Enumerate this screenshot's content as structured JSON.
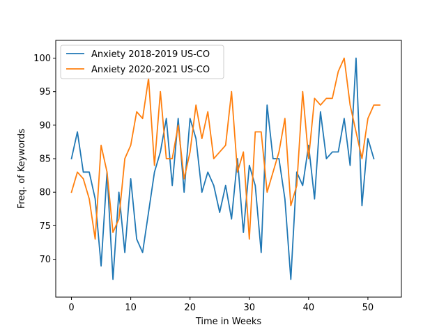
{
  "chart_data": {
    "type": "line",
    "title": "",
    "xlabel": "Time in Weeks",
    "ylabel": "Freq. of Keywords",
    "xlim": [
      -2.65,
      55.65
    ],
    "ylim": [
      64.35,
      102.65
    ],
    "xticks": [
      0,
      10,
      20,
      30,
      40,
      50
    ],
    "yticks": [
      70,
      75,
      80,
      85,
      90,
      95,
      100
    ],
    "grid": false,
    "legend_position": "top-left",
    "series": [
      {
        "name": "Anxiety 2018-2019 US-CO",
        "color": "#1f77b4",
        "x": [
          0,
          1,
          2,
          3,
          4,
          5,
          6,
          7,
          8,
          9,
          10,
          11,
          12,
          13,
          14,
          15,
          16,
          17,
          18,
          19,
          20,
          21,
          22,
          23,
          24,
          25,
          26,
          27,
          28,
          29,
          30,
          31,
          32,
          33,
          34,
          35,
          36,
          37,
          38,
          39,
          40,
          41,
          42,
          43,
          44,
          45,
          46,
          47,
          48,
          49,
          50,
          51
        ],
        "y": [
          85,
          89,
          83,
          83,
          79,
          69,
          83,
          67,
          80,
          71,
          82,
          73,
          71,
          77,
          83,
          86,
          91,
          81,
          91,
          80,
          91,
          88,
          80,
          83,
          81,
          77,
          81,
          76,
          85,
          74,
          84,
          81,
          71,
          93,
          85,
          85,
          79,
          67,
          83,
          81,
          87,
          79,
          92,
          85,
          86,
          86,
          91,
          84,
          100,
          78,
          88,
          85
        ]
      },
      {
        "name": "Anxiety 2020-2021 US-CO",
        "color": "#ff7f0e",
        "x": [
          0,
          1,
          2,
          3,
          4,
          5,
          6,
          7,
          8,
          9,
          10,
          11,
          12,
          13,
          14,
          15,
          16,
          17,
          18,
          19,
          20,
          21,
          22,
          23,
          24,
          25,
          26,
          27,
          28,
          29,
          30,
          31,
          32,
          33,
          34,
          35,
          36,
          37,
          38,
          39,
          40,
          41,
          42,
          43,
          44,
          45,
          46,
          47,
          48,
          49,
          50,
          51,
          52
        ],
        "y": [
          80,
          83,
          82,
          79,
          73,
          87,
          83,
          74,
          76,
          85,
          87,
          92,
          91,
          97,
          84,
          95,
          85,
          85,
          90,
          82,
          86,
          93,
          88,
          92,
          85,
          86,
          87,
          95,
          83,
          86,
          73,
          89,
          89,
          80,
          83,
          86,
          91,
          78,
          81,
          95,
          85,
          94,
          93,
          94,
          94,
          98,
          100,
          93,
          89,
          85,
          91,
          93,
          93
        ]
      }
    ]
  }
}
